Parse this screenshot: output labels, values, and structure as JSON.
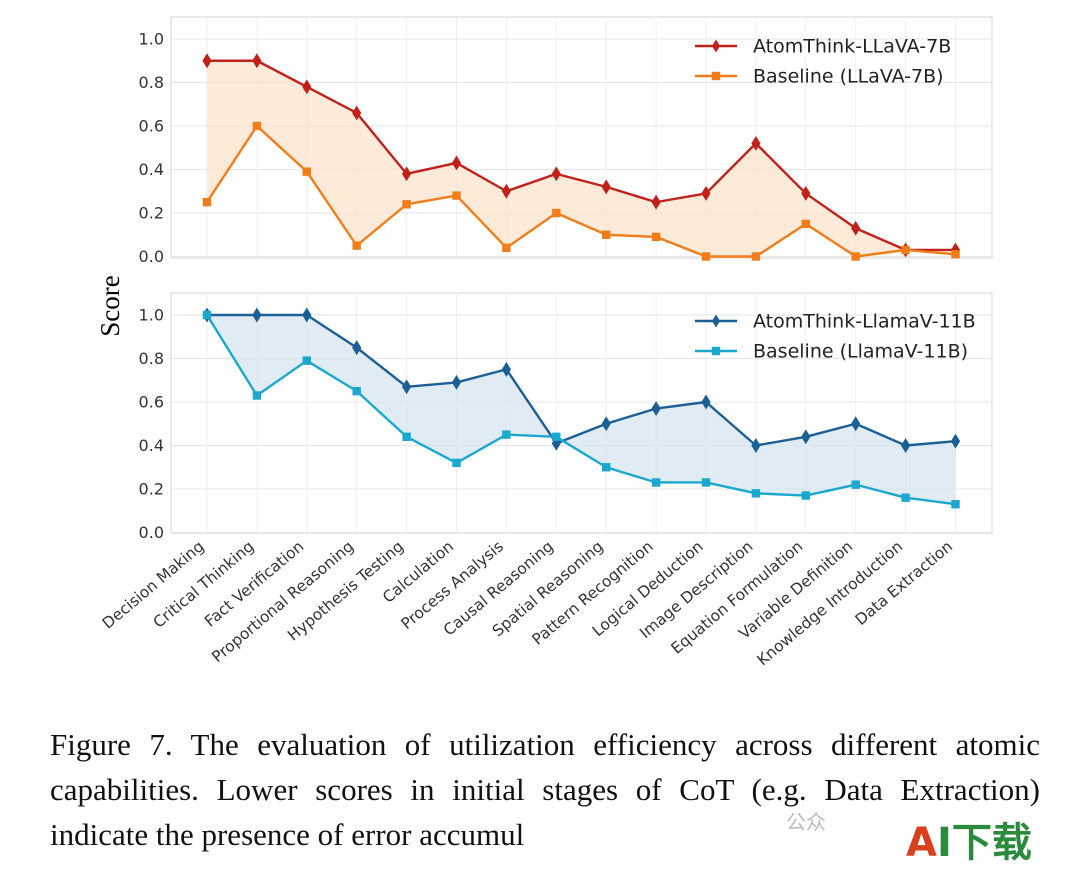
{
  "chart_data": [
    {
      "type": "line",
      "ylabel": "Score",
      "ylim": [
        0.0,
        1.1
      ],
      "yticks": [
        "0.0",
        "0.2",
        "0.4",
        "0.6",
        "0.8",
        "1.0"
      ],
      "grid": true,
      "legend_position": "top-right",
      "shaded_between_series": true,
      "categories": [
        "Decision Making",
        "Critical Thinking",
        "Fact Verification",
        "Proportional Reasoning",
        "Hypothesis Testing",
        "Calculation",
        "Process Analysis",
        "Causal Reasoning",
        "Spatial Reasoning",
        "Pattern Recognition",
        "Logical Deduction",
        "Image Description",
        "Equation Formulation",
        "Variable Definition",
        "Knowledge Introduction",
        "Data Extraction"
      ],
      "series": [
        {
          "name": "AtomThink-LLaVA-7B",
          "marker": "diamond",
          "color": "#c0221b",
          "values": [
            0.9,
            0.9,
            0.78,
            0.66,
            0.38,
            0.43,
            0.3,
            0.38,
            0.32,
            0.25,
            0.29,
            0.52,
            0.29,
            0.13,
            0.03,
            0.03
          ]
        },
        {
          "name": "Baseline (LLaVA-7B)",
          "marker": "square",
          "color": "#f07d1a",
          "values": [
            0.25,
            0.6,
            0.39,
            0.05,
            0.24,
            0.28,
            0.04,
            0.2,
            0.1,
            0.09,
            0.0,
            0.0,
            0.15,
            0.0,
            0.03,
            0.01
          ]
        }
      ],
      "fill_color": "#fde3cb"
    },
    {
      "type": "line",
      "ylabel": "Score",
      "ylim": [
        0.0,
        1.1
      ],
      "yticks": [
        "0.0",
        "0.2",
        "0.4",
        "0.6",
        "0.8",
        "1.0"
      ],
      "grid": true,
      "legend_position": "top-right",
      "shaded_between_series": true,
      "categories": [
        "Decision Making",
        "Critical Thinking",
        "Fact Verification",
        "Proportional Reasoning",
        "Hypothesis Testing",
        "Calculation",
        "Process Analysis",
        "Causal Reasoning",
        "Spatial Reasoning",
        "Pattern Recognition",
        "Logical Deduction",
        "Image Description",
        "Equation Formulation",
        "Variable Definition",
        "Knowledge Introduction",
        "Data Extraction"
      ],
      "series": [
        {
          "name": "AtomThink-LlamaV-11B",
          "marker": "diamond",
          "color": "#1b5f96",
          "values": [
            1.0,
            1.0,
            1.0,
            0.85,
            0.67,
            0.69,
            0.75,
            0.41,
            0.5,
            0.57,
            0.6,
            0.4,
            0.44,
            0.5,
            0.4,
            0.42
          ]
        },
        {
          "name": "Baseline (LlamaV-11B)",
          "marker": "square",
          "color": "#1aa8cf",
          "values": [
            1.0,
            0.63,
            0.79,
            0.65,
            0.44,
            0.32,
            0.45,
            0.44,
            0.3,
            0.23,
            0.23,
            0.18,
            0.17,
            0.22,
            0.16,
            0.13
          ]
        }
      ],
      "fill_color": "#d6e4f0"
    }
  ],
  "y_axis_label": "Score",
  "caption": "Figure 7.  The evaluation of utilization efficiency across different atomic capabilities.  Lower scores in initial stages of CoT (e.g. Data Extraction) indicate the presence of error accumul",
  "watermark": {
    "part1": "A",
    "part2": "I下载",
    "social_text": "公众"
  }
}
